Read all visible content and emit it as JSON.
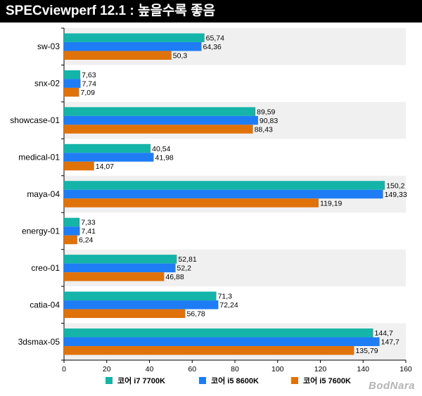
{
  "title": "SPECviewperf 12.1 : 높을수록 좋음",
  "watermark": "BodNara",
  "chart_data": {
    "type": "bar",
    "orientation": "horizontal",
    "title": "SPECviewperf 12.1 : 높을수록 좋음",
    "categories": [
      "sw-03",
      "snx-02",
      "showcase-01",
      "medical-01",
      "maya-04",
      "energy-01",
      "creo-01",
      "catia-04",
      "3dsmax-05"
    ],
    "value_labels": [
      [
        "65,74",
        "7,63",
        "89,59",
        "40,54",
        "150,2",
        "7,33",
        "52,81",
        "71,3",
        "144,7"
      ],
      [
        "64,36",
        "7,74",
        "90,83",
        "41,98",
        "149,33",
        "7,41",
        "52,2",
        "72,24",
        "147,7"
      ],
      [
        "50,3",
        "7,09",
        "88,43",
        "14,07",
        "119,19",
        "6,24",
        "46,88",
        "56,78",
        "135,79"
      ]
    ],
    "series": [
      {
        "name": "코어 i7 7700K",
        "color": "#14b4a8",
        "values": [
          65.74,
          7.63,
          89.59,
          40.54,
          150.2,
          7.33,
          52.81,
          71.3,
          144.7
        ]
      },
      {
        "name": "코어 i5 8600K",
        "color": "#1e7df5",
        "values": [
          64.36,
          7.74,
          90.83,
          41.98,
          149.33,
          7.41,
          52.2,
          72.24,
          147.7
        ]
      },
      {
        "name": "코어 i5 7600K",
        "color": "#e0720a",
        "values": [
          50.3,
          7.09,
          88.43,
          14.07,
          119.19,
          6.24,
          46.88,
          56.78,
          135.79
        ]
      }
    ],
    "xlim": [
      0,
      160
    ],
    "xticks": [
      "0",
      "20",
      "40",
      "60",
      "80",
      "100",
      "120",
      "140",
      "160"
    ],
    "legend": "bottom",
    "grid": false
  }
}
